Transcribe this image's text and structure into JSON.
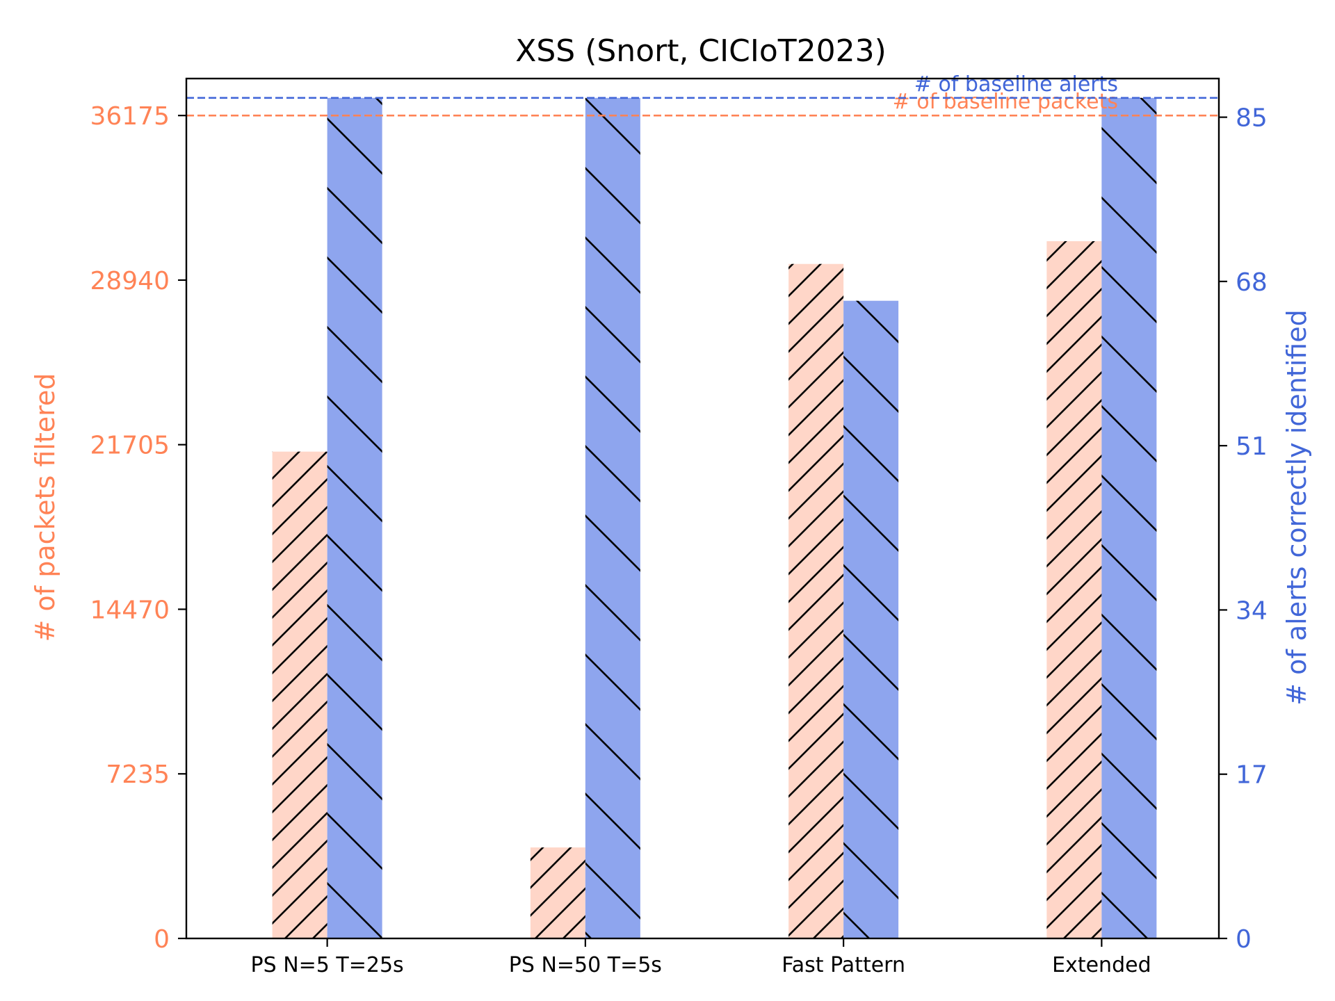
{
  "chart_data": {
    "type": "bar",
    "title": "XSS (Snort, CICIoT2023)",
    "categories": [
      "PS N=5 T=25s",
      "PS N=50 T=5s",
      "Fast Pattern",
      "Extended"
    ],
    "left_axis": {
      "label": "# of packets filtered",
      "ylim": [
        0,
        37800
      ],
      "ticks": [
        0,
        7235,
        14470,
        21705,
        28940,
        36175
      ],
      "tick_labels": [
        "0",
        "7235",
        "14470",
        "21705",
        "28940",
        "36175"
      ]
    },
    "right_axis": {
      "label": "# of alerts correctly identified",
      "ylim": [
        0,
        89
      ],
      "ticks": [
        0,
        17,
        34,
        51,
        68,
        85
      ],
      "tick_labels": [
        "0",
        "17",
        "34",
        "51",
        "68",
        "85"
      ]
    },
    "series": [
      {
        "name": "packets filtered",
        "axis": "left",
        "color": "#ffd6c8",
        "hatch": "forward",
        "values": [
          21400,
          4000,
          29650,
          30650
        ]
      },
      {
        "name": "alerts correctly identified",
        "axis": "right",
        "color": "#8ea5ee",
        "hatch": "back",
        "values": [
          87,
          87,
          66,
          87
        ]
      }
    ],
    "reference_lines": [
      {
        "label": "# of baseline packets",
        "axis": "left",
        "value": 36175,
        "color": "#ff8356",
        "style": "dashed"
      },
      {
        "label": "# of baseline alerts",
        "axis": "right",
        "value": 87,
        "color": "#4166d8",
        "style": "dashed"
      }
    ],
    "colors": {
      "left_axis": "#ff8356",
      "right_axis": "#4166d8"
    },
    "grid": false,
    "legend": "none"
  }
}
